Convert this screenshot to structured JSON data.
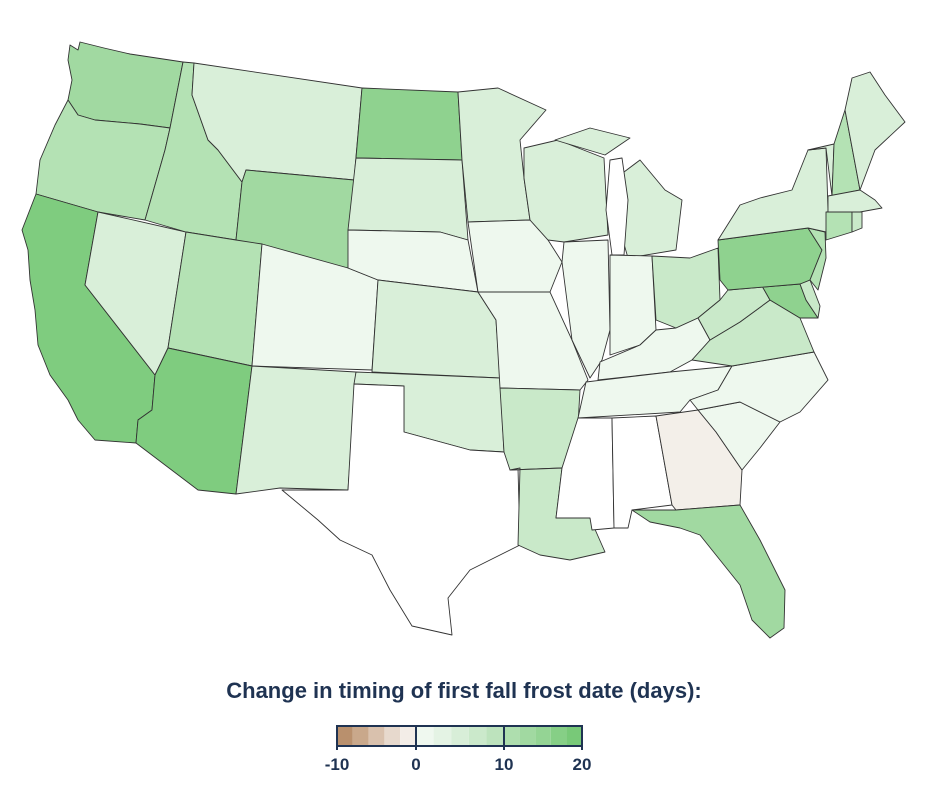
{
  "legend": {
    "title": "Change in timing of first fall frost date (days):",
    "tick_labels": [
      "-10",
      "0",
      "10",
      "20"
    ],
    "bins": [
      {
        "range": "-10 to -8",
        "color": "#b9906d"
      },
      {
        "range": "-8 to -6",
        "color": "#c9a88b"
      },
      {
        "range": "-6 to -4",
        "color": "#d9c1ad"
      },
      {
        "range": "-4 to -2",
        "color": "#e7d9cd"
      },
      {
        "range": "-2 to 0",
        "color": "#f3ede7"
      },
      {
        "range": "0 to 2",
        "color": "#eff8ef"
      },
      {
        "range": "2 to 4",
        "color": "#e4f3e4"
      },
      {
        "range": "4 to 6",
        "color": "#d8eed8"
      },
      {
        "range": "6 to 8",
        "color": "#cbe9cb"
      },
      {
        "range": "8 to 10",
        "color": "#bde3bd"
      },
      {
        "range": "10 to 12",
        "color": "#aedeae"
      },
      {
        "range": "12 to 14",
        "color": "#a1d9a1"
      },
      {
        "range": "14 to 16",
        "color": "#94d494"
      },
      {
        "range": "16 to 18",
        "color": "#86cf86"
      },
      {
        "range": "18 to 20",
        "color": "#78c978"
      }
    ]
  },
  "map": {
    "colors": {
      "no_data_or_none": "#ffffff",
      "decrease_slight": "#f3efe9",
      "increase_1": "#eef8ee",
      "increase_2": "#d9efd9",
      "increase_3": "#c9e9c9",
      "increase_4": "#b4e2b4",
      "increase_5": "#a1d9a1",
      "increase_6": "#8fd28f",
      "increase_7": "#7fcc7f"
    },
    "states": [
      {
        "name": "Washington",
        "level": "increase_5"
      },
      {
        "name": "Oregon",
        "level": "increase_4"
      },
      {
        "name": "California",
        "level": "increase_7"
      },
      {
        "name": "Nevada",
        "level": "increase_2"
      },
      {
        "name": "Idaho",
        "level": "increase_4"
      },
      {
        "name": "Montana",
        "level": "increase_2"
      },
      {
        "name": "Wyoming",
        "level": "increase_5"
      },
      {
        "name": "Utah",
        "level": "increase_4"
      },
      {
        "name": "Colorado",
        "level": "increase_1"
      },
      {
        "name": "Arizona",
        "level": "increase_7"
      },
      {
        "name": "New Mexico",
        "level": "increase_2"
      },
      {
        "name": "North Dakota",
        "level": "increase_6"
      },
      {
        "name": "South Dakota",
        "level": "increase_2"
      },
      {
        "name": "Nebraska",
        "level": "increase_1"
      },
      {
        "name": "Kansas",
        "level": "increase_2"
      },
      {
        "name": "Oklahoma",
        "level": "increase_2"
      },
      {
        "name": "Texas",
        "level": "no_data_or_none"
      },
      {
        "name": "Minnesota",
        "level": "increase_2"
      },
      {
        "name": "Iowa",
        "level": "increase_1"
      },
      {
        "name": "Missouri",
        "level": "increase_1"
      },
      {
        "name": "Arkansas",
        "level": "increase_3"
      },
      {
        "name": "Louisiana",
        "level": "increase_3"
      },
      {
        "name": "Wisconsin",
        "level": "increase_2"
      },
      {
        "name": "Illinois",
        "level": "increase_1"
      },
      {
        "name": "Michigan",
        "level": "increase_2"
      },
      {
        "name": "Indiana",
        "level": "increase_1"
      },
      {
        "name": "Ohio",
        "level": "increase_3"
      },
      {
        "name": "Kentucky",
        "level": "increase_1"
      },
      {
        "name": "Tennessee",
        "level": "increase_1"
      },
      {
        "name": "Mississippi",
        "level": "no_data_or_none"
      },
      {
        "name": "Alabama",
        "level": "no_data_or_none"
      },
      {
        "name": "Georgia",
        "level": "decrease_slight"
      },
      {
        "name": "Florida",
        "level": "increase_5"
      },
      {
        "name": "South Carolina",
        "level": "increase_1"
      },
      {
        "name": "North Carolina",
        "level": "increase_1"
      },
      {
        "name": "Virginia",
        "level": "increase_3"
      },
      {
        "name": "West Virginia",
        "level": "increase_3"
      },
      {
        "name": "Maryland",
        "level": "increase_6"
      },
      {
        "name": "Delaware",
        "level": "increase_3"
      },
      {
        "name": "Pennsylvania",
        "level": "increase_6"
      },
      {
        "name": "New Jersey",
        "level": "increase_4"
      },
      {
        "name": "New York",
        "level": "increase_2"
      },
      {
        "name": "Connecticut",
        "level": "increase_4"
      },
      {
        "name": "Rhode Island",
        "level": "increase_3"
      },
      {
        "name": "Massachusetts",
        "level": "increase_2"
      },
      {
        "name": "Vermont",
        "level": "increase_2"
      },
      {
        "name": "New Hampshire",
        "level": "increase_4"
      },
      {
        "name": "Maine",
        "level": "increase_2"
      }
    ]
  }
}
